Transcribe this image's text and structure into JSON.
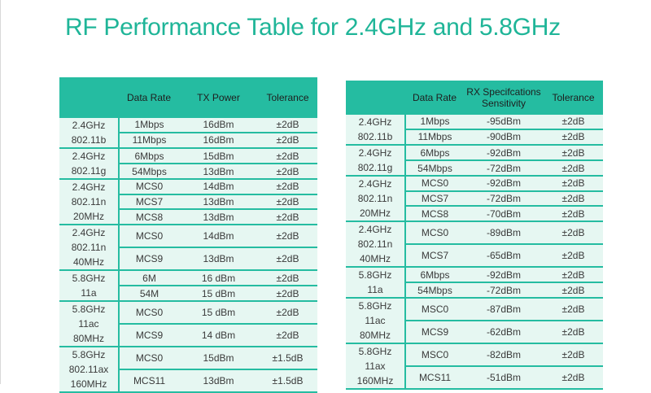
{
  "title": "RF Performance Table for 2.4GHz and 5.8GHz",
  "colors": {
    "accent": "#25bca1",
    "title": "#1fb598",
    "row_bg": "#e6f7f2"
  },
  "tx_table": {
    "headers": [
      "",
      "Data Rate",
      "TX Power",
      "Tolerance"
    ],
    "groups": [
      {
        "band": "2.4GHz\n802.11b",
        "rows": [
          [
            "1Mbps",
            "16dBm",
            "±2dB"
          ],
          [
            "11Mbps",
            "16dBm",
            "±2dB"
          ]
        ]
      },
      {
        "band": "2.4GHz\n802.11g",
        "rows": [
          [
            "6Mbps",
            "15dBm",
            "±2dB"
          ],
          [
            "54Mbps",
            "13dBm",
            "±2dB"
          ]
        ]
      },
      {
        "band": "2.4GHz\n802.11n\n20MHz",
        "rows": [
          [
            "MCS0",
            "14dBm",
            "±2dB"
          ],
          [
            "MCS7",
            "13dBm",
            "±2dB"
          ],
          [
            "MCS8",
            "13dBm",
            "±2dB"
          ]
        ]
      },
      {
        "band": "2.4GHz\n802.11n\n40MHz",
        "rows": [
          [
            "MCS0",
            "14dBm",
            "±2dB"
          ],
          [
            "MCS9",
            "13dBm",
            "±2dB"
          ]
        ]
      },
      {
        "band": "5.8GHz\n11a",
        "rows": [
          [
            "6M",
            "16 dBm",
            "±2dB"
          ],
          [
            "54M",
            "15 dBm",
            "±2dB"
          ]
        ]
      },
      {
        "band": "5.8GHz\n11ac\n80MHz",
        "rows": [
          [
            "MCS0",
            "15 dBm",
            "±2dB"
          ],
          [
            "MCS9",
            "14 dBm",
            "±2dB"
          ]
        ]
      },
      {
        "band": "5.8GHz\n802.11ax\n160MHz",
        "rows": [
          [
            "MCS0",
            "15dBm",
            "±1.5dB"
          ],
          [
            "MCS11",
            "13dBm",
            "±1.5dB"
          ]
        ]
      }
    ]
  },
  "rx_table": {
    "headers": [
      "",
      "Data Rate",
      "RX Specifcations\nSensitivity",
      "Tolerance"
    ],
    "groups": [
      {
        "band": "2.4GHz\n802.11b",
        "rows": [
          [
            "1Mbps",
            "-95dBm",
            "±2dB"
          ],
          [
            "11Mbps",
            "-90dBm",
            "±2dB"
          ]
        ]
      },
      {
        "band": "2.4GHz\n802.11g",
        "rows": [
          [
            "6Mbps",
            "-92dBm",
            "±2dB"
          ],
          [
            "54Mbps",
            "-72dBm",
            "±2dB"
          ]
        ]
      },
      {
        "band": "2.4GHz\n802.11n\n20MHz",
        "rows": [
          [
            "MCS0",
            "-92dBm",
            "±2dB"
          ],
          [
            "MCS7",
            "-72dBm",
            "±2dB"
          ],
          [
            "MCS8",
            "-70dBm",
            "±2dB"
          ]
        ]
      },
      {
        "band": "2.4GHz\n802.11n\n40MHz",
        "rows": [
          [
            "MCS0",
            "-89dBm",
            "±2dB"
          ],
          [
            "MCS7",
            "-65dBm",
            "±2dB"
          ]
        ]
      },
      {
        "band": "5.8GHz\n11a",
        "rows": [
          [
            "6Mbps",
            "-92dBm",
            "±2dB"
          ],
          [
            "54Mbps",
            "-72dBm",
            "±2dB"
          ]
        ]
      },
      {
        "band": "5.8GHz\n11ac\n80MHz",
        "rows": [
          [
            "MSC0",
            "-87dBm",
            "±2dB"
          ],
          [
            "MCS9",
            "-62dBm",
            "±2dB"
          ]
        ]
      },
      {
        "band": "5.8GHz\n11ax\n160MHz",
        "rows": [
          [
            "MSC0",
            "-82dBm",
            "±2dB"
          ],
          [
            "MCS11",
            "-51dBm",
            "±2dB"
          ]
        ]
      }
    ]
  }
}
